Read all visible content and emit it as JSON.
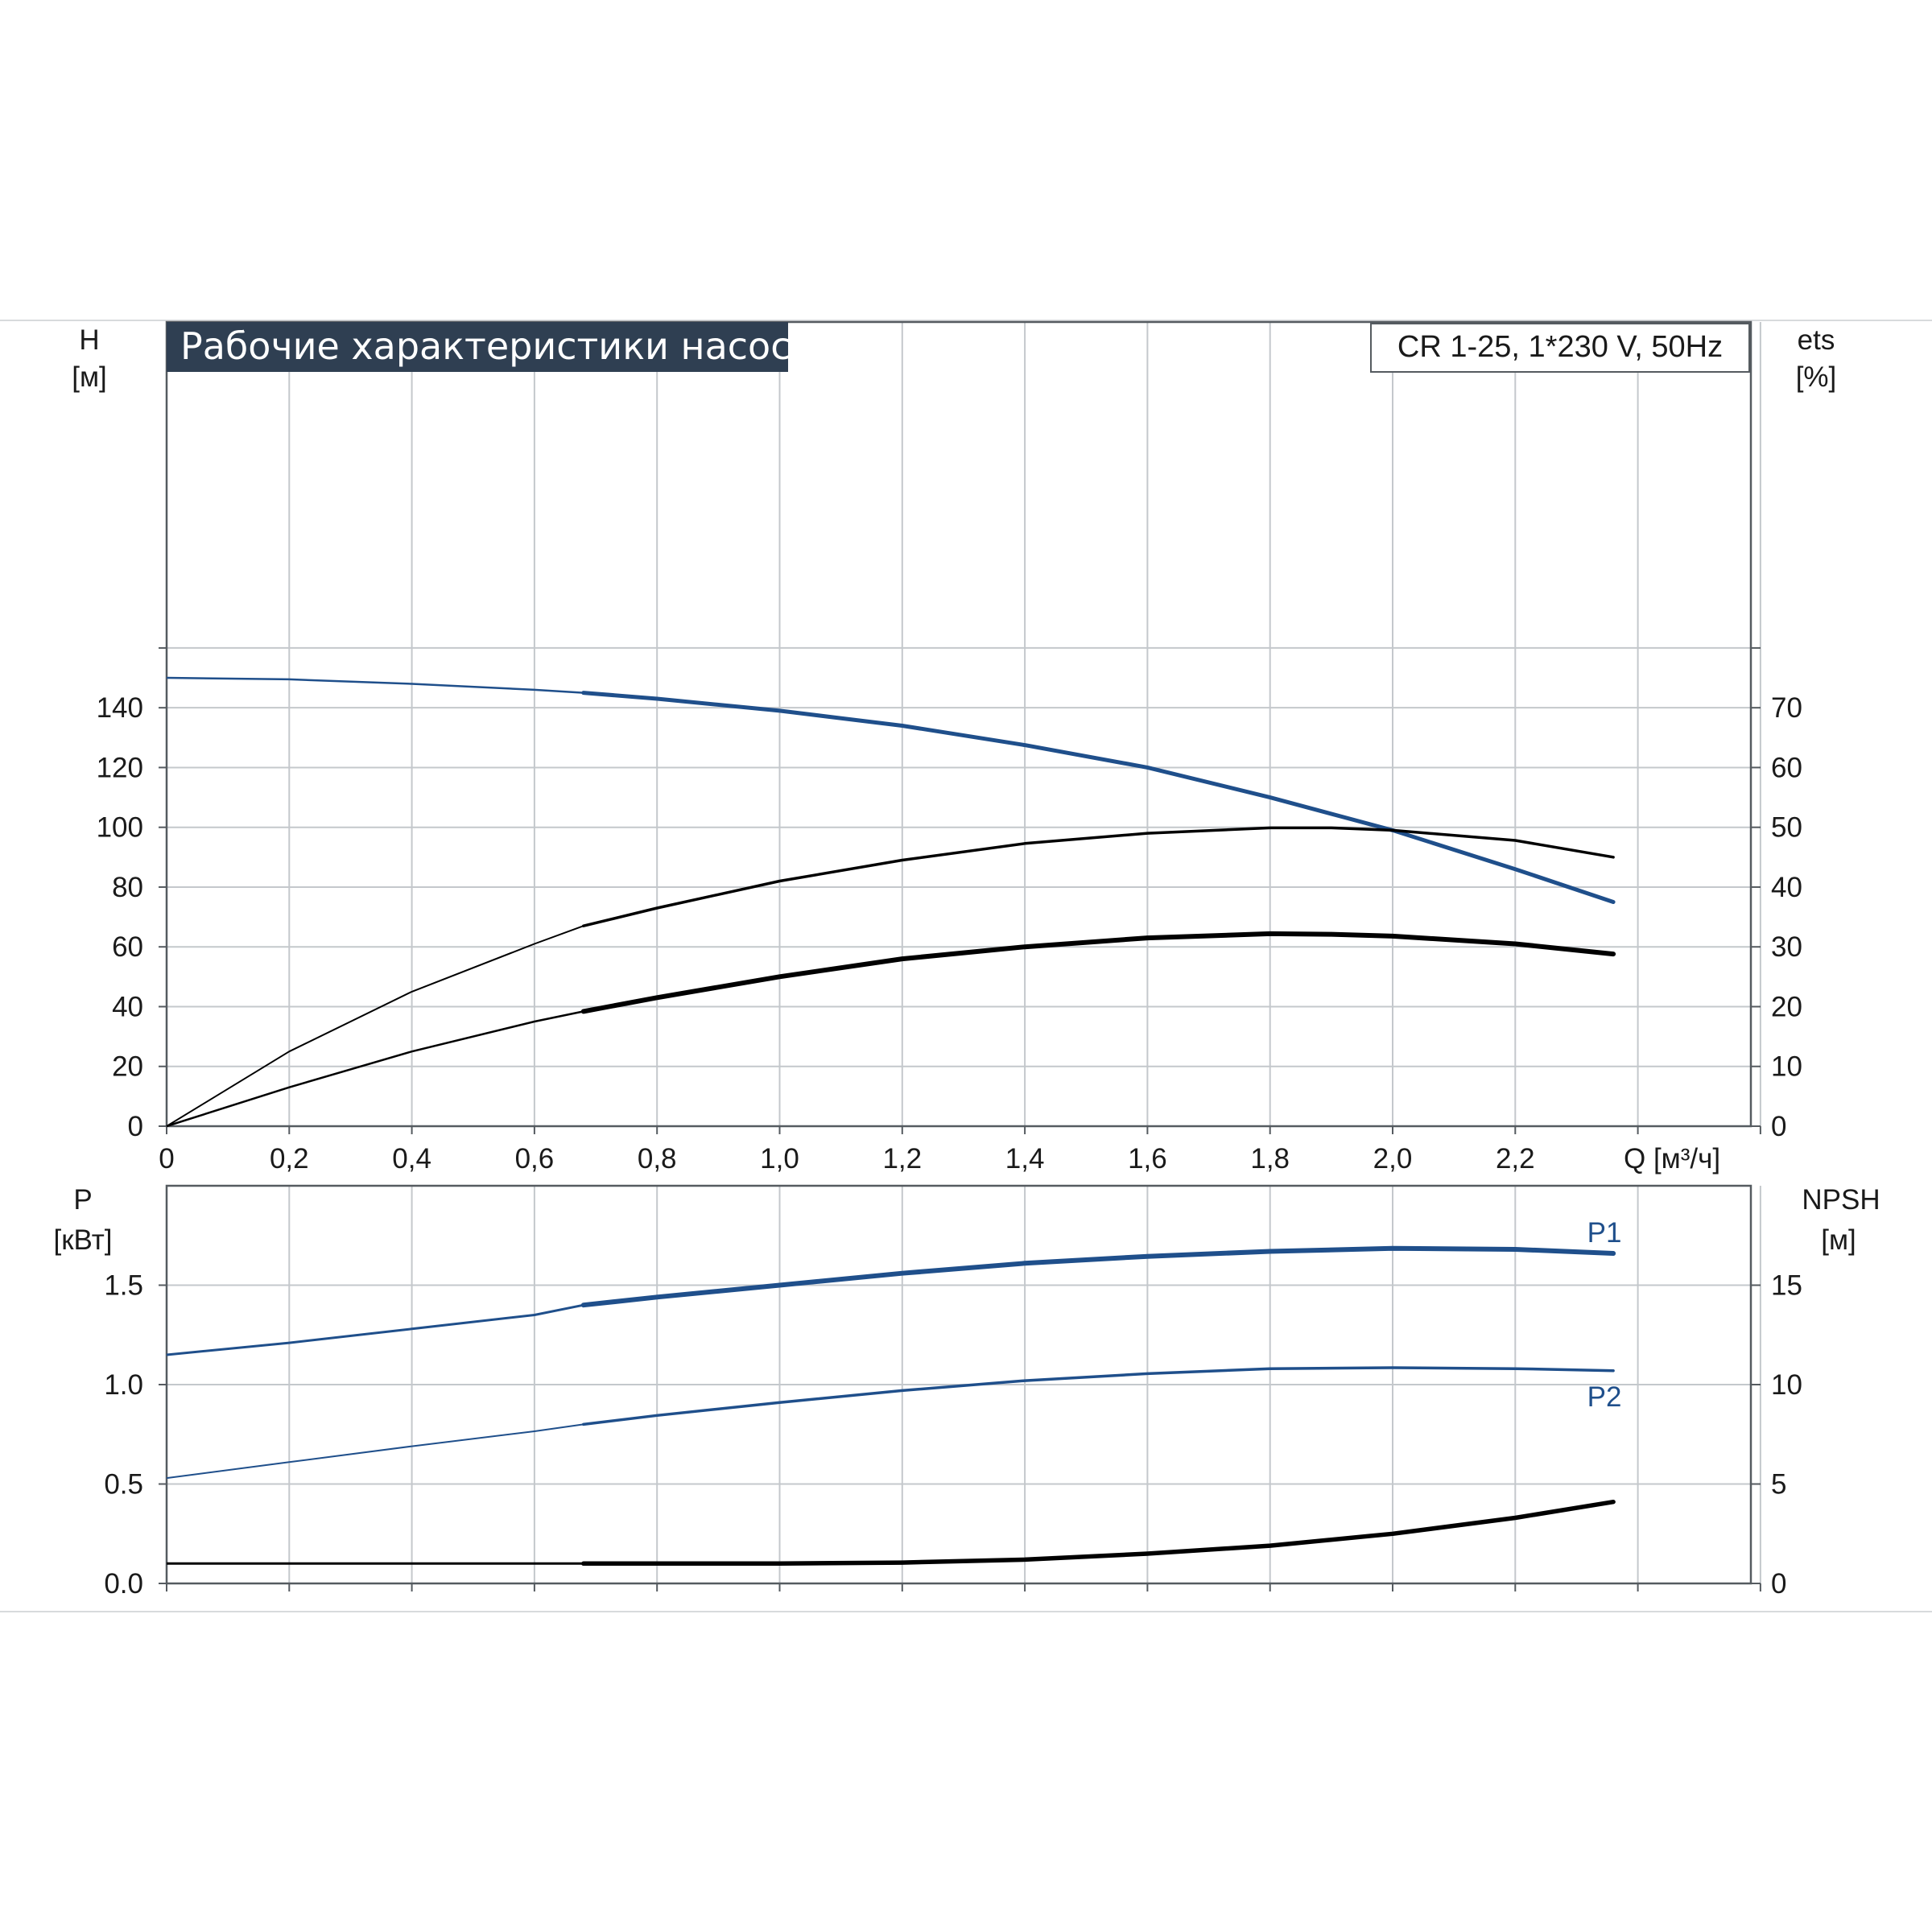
{
  "colors": {
    "blue": "#1f4f8b",
    "black": "#000000",
    "grid": "#c4c8cc",
    "title_bg": "#2f3f52"
  },
  "header": {
    "title": "Рабочие характеристики насоса",
    "model": "CR 1-25, 1*230 V, 50Hz"
  },
  "top_axes": {
    "left_label": "H",
    "left_unit": "[м]",
    "right_label": "ets",
    "right_unit": "[%]",
    "x_unit": "Q [м³/ч]",
    "x_ticks": [
      "0",
      "0,2",
      "0,4",
      "0,6",
      "0,8",
      "1,0",
      "1,2",
      "1,4",
      "1,6",
      "1,8",
      "2,0",
      "2,2"
    ],
    "left_ticks": [
      "0",
      "20",
      "40",
      "60",
      "80",
      "100",
      "120",
      "140"
    ],
    "right_ticks": [
      "0",
      "10",
      "20",
      "30",
      "40",
      "50",
      "60",
      "70"
    ]
  },
  "bottom_axes": {
    "left_label": "P",
    "left_unit": "[кВт]",
    "right_label": "NPSH",
    "right_unit": "[м]",
    "left_ticks": [
      "0.0",
      "0.5",
      "1.0",
      "1.5"
    ],
    "right_ticks": [
      "0",
      "5",
      "10",
      "15"
    ],
    "p1_label": "P1",
    "p2_label": "P2"
  },
  "chart_data": [
    {
      "type": "line",
      "title": "Рабочие характеристики насоса",
      "xlabel": "Q [м³/ч]",
      "ylabel": "H [м]",
      "y2label": "ets [%]",
      "xlim": [
        0,
        2.6
      ],
      "ylim": [
        0,
        150
      ],
      "y2lim": [
        0,
        75
      ],
      "grid": true,
      "series": [
        {
          "role": "head",
          "axis": "left",
          "color": "blue",
          "x": [
            0,
            0.2,
            0.4,
            0.6,
            0.68,
            0.8,
            1.0,
            1.2,
            1.4,
            1.6,
            1.8,
            2.0,
            2.2,
            2.36
          ],
          "y": [
            150,
            149.5,
            148,
            146,
            145,
            143,
            139,
            134,
            127.5,
            120,
            110,
            99,
            86,
            75
          ]
        },
        {
          "role": "efficiency",
          "axis": "right",
          "color": "black",
          "x": [
            0,
            0.2,
            0.4,
            0.6,
            0.68,
            0.8,
            1.0,
            1.2,
            1.4,
            1.6,
            1.8,
            1.9,
            2.0,
            2.2,
            2.36
          ],
          "y": [
            0,
            12.5,
            22.5,
            30.5,
            33.5,
            36.5,
            41,
            44.5,
            47.3,
            49,
            49.9,
            49.9,
            49.5,
            47.8,
            45
          ]
        },
        {
          "role": "efficiency-2",
          "axis": "right",
          "color": "black",
          "x": [
            0,
            0.2,
            0.4,
            0.6,
            0.68,
            0.8,
            1.0,
            1.2,
            1.4,
            1.6,
            1.8,
            1.9,
            2.0,
            2.2,
            2.36
          ],
          "y": [
            0,
            6.5,
            12.5,
            17.5,
            19.2,
            21.5,
            25,
            28,
            30,
            31.5,
            32.2,
            32.1,
            31.8,
            30.5,
            28.8
          ]
        }
      ]
    },
    {
      "type": "line",
      "xlabel": "Q [м³/ч]",
      "ylabel": "P [кВт]",
      "y2label": "NPSH [м]",
      "xlim": [
        0,
        2.6
      ],
      "ylim": [
        0,
        2.0
      ],
      "y2lim": [
        0,
        20
      ],
      "grid": true,
      "series": [
        {
          "name": "P1",
          "axis": "left",
          "color": "blue",
          "x": [
            0,
            0.2,
            0.4,
            0.6,
            0.68,
            0.8,
            1.0,
            1.2,
            1.4,
            1.6,
            1.8,
            2.0,
            2.2,
            2.36
          ],
          "y": [
            1.15,
            1.21,
            1.28,
            1.35,
            1.4,
            1.44,
            1.5,
            1.56,
            1.61,
            1.645,
            1.67,
            1.685,
            1.68,
            1.66
          ]
        },
        {
          "name": "P2",
          "axis": "left",
          "color": "blue",
          "x": [
            0,
            0.2,
            0.4,
            0.6,
            0.68,
            0.8,
            1.0,
            1.2,
            1.4,
            1.6,
            1.8,
            2.0,
            2.2,
            2.36
          ],
          "y": [
            0.53,
            0.61,
            0.69,
            0.765,
            0.8,
            0.845,
            0.91,
            0.97,
            1.02,
            1.055,
            1.08,
            1.085,
            1.08,
            1.07
          ]
        },
        {
          "role": "NPSH",
          "axis": "right",
          "color": "black",
          "x": [
            0,
            0.2,
            0.4,
            0.6,
            0.68,
            0.8,
            1.0,
            1.2,
            1.4,
            1.6,
            1.8,
            2.0,
            2.2,
            2.36
          ],
          "y": [
            1.0,
            1.0,
            1.0,
            1.0,
            1.0,
            1.0,
            1.0,
            1.05,
            1.2,
            1.5,
            1.9,
            2.5,
            3.3,
            4.1
          ]
        }
      ]
    }
  ]
}
